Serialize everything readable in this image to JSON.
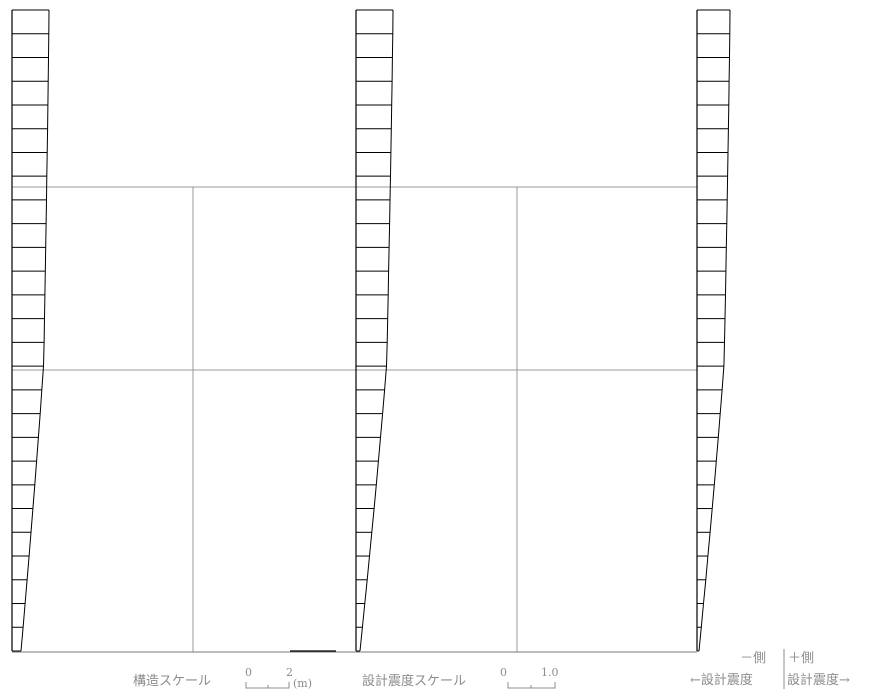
{
  "diagram": {
    "piles": [
      {
        "name": "left-pile"
      },
      {
        "name": "middle-pile"
      },
      {
        "name": "right-pile"
      }
    ],
    "band_count": 27
  },
  "legend": {
    "structure_scale_label": "構造スケール",
    "structure_scale_zero": "0",
    "structure_scale_value": "2",
    "structure_scale_unit": "(m)",
    "seismic_scale_label": "設計震度スケール",
    "seismic_scale_zero": "0",
    "seismic_scale_value": "1.0",
    "minus_side": "－側",
    "plus_side": "＋側",
    "minus_seismic": "←設計震度",
    "plus_seismic": "設計震度→"
  }
}
